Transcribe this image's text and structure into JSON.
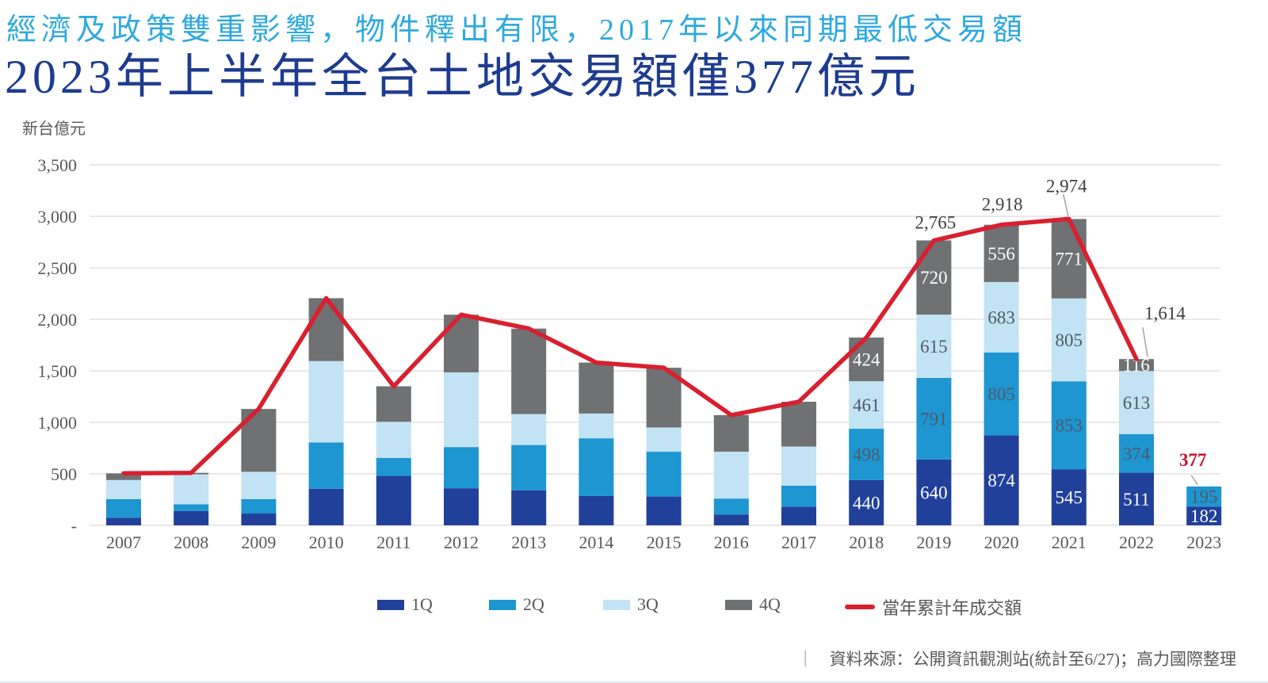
{
  "header": {
    "subtitle": "經濟及政策雙重影響，物件釋出有限，2017年以來同期最低交易額",
    "title": "2023年上半年全台土地交易額僅377億元"
  },
  "chart_data": {
    "type": "bar",
    "stacked": true,
    "line_overlay": true,
    "unit_label": "新台億元",
    "categories": [
      "2007",
      "2008",
      "2009",
      "2010",
      "2011",
      "2012",
      "2013",
      "2014",
      "2015",
      "2016",
      "2017",
      "2018",
      "2019",
      "2020",
      "2021",
      "2022",
      "2023"
    ],
    "series": [
      {
        "name": "1Q",
        "color": "#21409A",
        "label_color": "#FFFFFF",
        "values": [
          75,
          140,
          115,
          355,
          480,
          360,
          340,
          285,
          280,
          105,
          180,
          440,
          640,
          874,
          545,
          511,
          182
        ]
      },
      {
        "name": "2Q",
        "color": "#1E96D2",
        "label_color": "#4F5A68",
        "values": [
          180,
          65,
          140,
          450,
          175,
          400,
          440,
          560,
          435,
          155,
          205,
          498,
          791,
          805,
          853,
          374,
          195
        ]
      },
      {
        "name": "3Q",
        "color": "#C2E3F4",
        "label_color": "#4F5A68",
        "values": [
          185,
          290,
          265,
          790,
          350,
          725,
          300,
          240,
          235,
          455,
          380,
          461,
          615,
          683,
          805,
          613,
          null
        ]
      },
      {
        "name": "4Q",
        "color": "#6F7173",
        "label_color": "#FFFFFF",
        "values": [
          65,
          15,
          610,
          610,
          345,
          560,
          830,
          495,
          580,
          355,
          435,
          424,
          720,
          556,
          771,
          116,
          null
        ]
      }
    ],
    "line_series": {
      "name": "當年累計年成交額",
      "color": "#D8202F",
      "values": [
        505,
        510,
        1130,
        2205,
        1350,
        2045,
        1910,
        1580,
        1530,
        1070,
        1200,
        1823,
        2765,
        2918,
        2974,
        1614,
        null
      ]
    },
    "segment_labels_visible_years": [
      "2018",
      "2019",
      "2020",
      "2021",
      "2022",
      "2023"
    ],
    "total_labels": [
      {
        "year": "2019",
        "text": "2,765",
        "leader": false,
        "highlight": false
      },
      {
        "year": "2020",
        "text": "2,918",
        "leader": false,
        "highlight": false
      },
      {
        "year": "2021",
        "text": "2,974",
        "leader": true,
        "highlight": false
      },
      {
        "year": "2022",
        "text": "1,614",
        "leader": true,
        "highlight": false
      },
      {
        "year": "2023",
        "text": "377",
        "leader": true,
        "highlight": true
      }
    ],
    "y_axis": {
      "tick_labels": [
        "3,500",
        "3,000",
        "2,500",
        "2,000",
        "1,500",
        "1,000",
        "500",
        "-"
      ],
      "min": 0,
      "max": 3500,
      "step": 500
    },
    "grid": true,
    "legend_position": "bottom"
  },
  "colors": {
    "grid": "#D9D9D9",
    "axis_text": "#58595B",
    "total_label": "#3F3F3F",
    "highlight_label": "#C8112E",
    "leader": "#A6A6A6"
  },
  "legend": {
    "items": [
      {
        "label": "1Q",
        "color": "#21409A",
        "shape": "rect"
      },
      {
        "label": "2Q",
        "color": "#1E96D2",
        "shape": "rect"
      },
      {
        "label": "3Q",
        "color": "#C2E3F4",
        "shape": "rect"
      },
      {
        "label": "4Q",
        "color": "#6F7173",
        "shape": "rect"
      },
      {
        "label": "當年累計年成交額",
        "color": "#D8202F",
        "shape": "line"
      }
    ]
  },
  "footer": {
    "separator": "｜",
    "source": "資料來源：公開資訊觀測站(統計至6/27)；高力國際整理"
  }
}
